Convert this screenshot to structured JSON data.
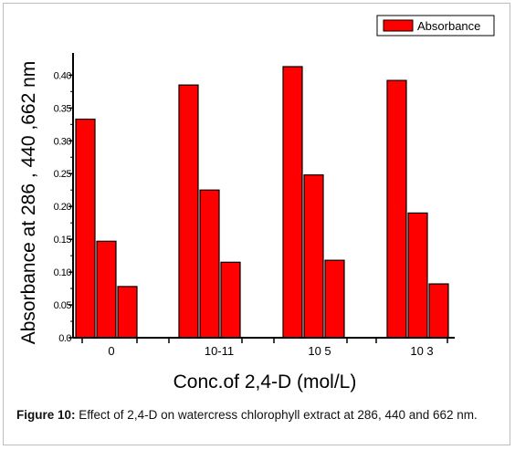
{
  "chart_data": {
    "type": "bar",
    "categories": [
      "0",
      "10-11",
      "10 5",
      "10 3"
    ],
    "series": [
      {
        "values": [
          0.333,
          0.385,
          0.413,
          0.392
        ]
      },
      {
        "values": [
          0.147,
          0.225,
          0.248,
          0.19
        ]
      },
      {
        "values": [
          0.078,
          0.115,
          0.118,
          0.082
        ]
      }
    ],
    "legend": [
      "Absorbance"
    ],
    "legend_position": "top-right",
    "xlabel": "Conc.of 2,4-D (mol/L)",
    "ylabel": "Absorbance at 286 , 440 ,662 nm",
    "ylim": [
      0,
      0.43
    ],
    "yticks": [
      "0.0",
      "0.05",
      "0.10",
      "0.15",
      "0.20",
      "0.25",
      "0.30",
      "0.35",
      "0.40"
    ],
    "ytick_values": [
      0,
      0.05,
      0.1,
      0.15,
      0.2,
      0.25,
      0.3,
      0.35,
      0.4
    ],
    "bar_color": "#ff0000",
    "grid": false
  },
  "caption": {
    "label": "Figure 10:",
    "text": "Effect of 2,4-D on watercress chlorophyll extract at 286, 440 and 662 nm."
  }
}
